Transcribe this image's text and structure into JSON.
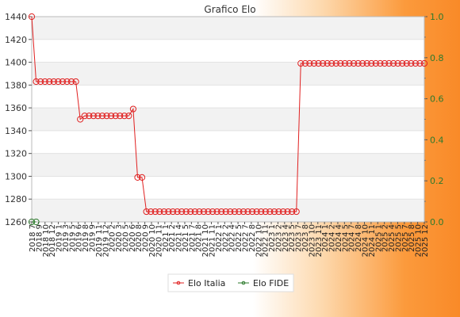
{
  "chart_data": {
    "type": "line",
    "title": "Grafico Elo",
    "x": [
      "2018 7",
      "2018 8",
      "2018 9",
      "2018 10",
      "2018 11",
      "2018 12",
      "2019 1",
      "2019 2",
      "2019 3",
      "2019 4",
      "2019 5",
      "2019 6",
      "2019 7",
      "2019 8",
      "2019 9",
      "2019 10",
      "2019 11",
      "2019 12",
      "2020 1",
      "2020 2",
      "2020 3",
      "2020 4",
      "2020 5",
      "2020 6",
      "2020 7",
      "2020 8",
      "2020 9",
      "2020 10",
      "2020 11",
      "2020 12",
      "2021 1",
      "2021 2",
      "2021 3",
      "2021 4",
      "2021 5",
      "2021 6",
      "2021 7",
      "2021 8",
      "2021 9",
      "2021 10",
      "2021 11",
      "2021 12",
      "2022 1",
      "2022 2",
      "2022 3",
      "2022 4",
      "2022 5",
      "2022 6",
      "2022 7",
      "2022 8",
      "2022 9",
      "2022 10",
      "2022 11",
      "2022 12",
      "2023 1",
      "2023 2",
      "2023 3",
      "2023 4",
      "2023 5",
      "2023 6",
      "2023 7",
      "2023 8",
      "2023 9",
      "2023 10",
      "2023 11",
      "2023 12",
      "2024 1",
      "2024 2",
      "2024 3",
      "2024 4",
      "2024 5",
      "2024 6",
      "2024 7",
      "2024 8",
      "2024 9",
      "2024 10",
      "2024 11",
      "2024 12",
      "2025 1",
      "2025 2",
      "2025 3",
      "2025 4",
      "2025 5",
      "2025 6",
      "2025 7",
      "2025 8",
      "2025 9",
      "2025 10",
      "2025 11",
      "2025 12"
    ],
    "x_tick_labels": [
      "2018 7",
      "2018 9",
      "2018 10",
      "2018 12",
      "2019 1",
      "2019 3",
      "2019 5",
      "2019 6",
      "2019 8",
      "2019 9",
      "2019 11",
      "2019 12",
      "2020 2",
      "2020 3",
      "2020 5",
      "2020 6",
      "2020 8",
      "2020 9",
      "2020 10",
      "2020 11",
      "2021 1",
      "2021 2",
      "2021 4",
      "2021 5",
      "2021 7",
      "2021 8",
      "2021 10",
      "2021 11",
      "2022 1",
      "2022 2",
      "2022 4",
      "2022 5",
      "2022 7",
      "2022 8",
      "2022 10",
      "2022 11",
      "2023 1",
      "2023 2",
      "2023 4",
      "2023 5",
      "2023 7",
      "2023 8",
      "2023 10",
      "2023 11",
      "2024 1",
      "2024 2",
      "2024 4",
      "2024 5",
      "2024 7",
      "2024 8",
      "2024 10",
      "2024 11",
      "2025 1",
      "2025 2",
      "2025 4",
      "2025 5",
      "2025 7",
      "2025 8",
      "2025 10",
      "2025 12"
    ],
    "series": [
      {
        "name": "Elo Italia",
        "color": "#e02020",
        "values": [
          1440,
          1383,
          1383,
          1383,
          1383,
          1383,
          1383,
          1383,
          1383,
          1383,
          1383,
          1350,
          1353,
          1353,
          1353,
          1353,
          1353,
          1353,
          1353,
          1353,
          1353,
          1353,
          1353,
          1359,
          1299,
          1299,
          1269,
          1269,
          1269,
          1269,
          1269,
          1269,
          1269,
          1269,
          1269,
          1269,
          1269,
          1269,
          1269,
          1269,
          1269,
          1269,
          1269,
          1269,
          1269,
          1269,
          1269,
          1269,
          1269,
          1269,
          1269,
          1269,
          1269,
          1269,
          1269,
          1269,
          1269,
          1269,
          1269,
          1269,
          1269,
          1399,
          1399,
          1399,
          1399,
          1399,
          1399,
          1399,
          1399,
          1399,
          1399,
          1399,
          1399,
          1399,
          1399,
          1399,
          1399,
          1399,
          1399,
          1399,
          1399,
          1399,
          1399,
          1399,
          1399,
          1399,
          1399,
          1399,
          1399,
          1399
        ]
      },
      {
        "name": "Elo FIDE",
        "color": "#2d7a2d",
        "points": [
          {
            "x": "2018 7",
            "y": 0
          },
          {
            "x": "2018 8",
            "y": 0
          }
        ]
      }
    ],
    "y_left": {
      "min": 1260,
      "max": 1440,
      "ticks": [
        1260,
        1280,
        1300,
        1320,
        1340,
        1360,
        1380,
        1400,
        1420,
        1440
      ]
    },
    "y_right": {
      "min": 0,
      "max": 1,
      "ticks": [
        "0.0",
        "0.2",
        "0.4",
        "0.6",
        "0.8",
        "1.0"
      ]
    },
    "grid": true,
    "legend_position": "bottom-center"
  }
}
